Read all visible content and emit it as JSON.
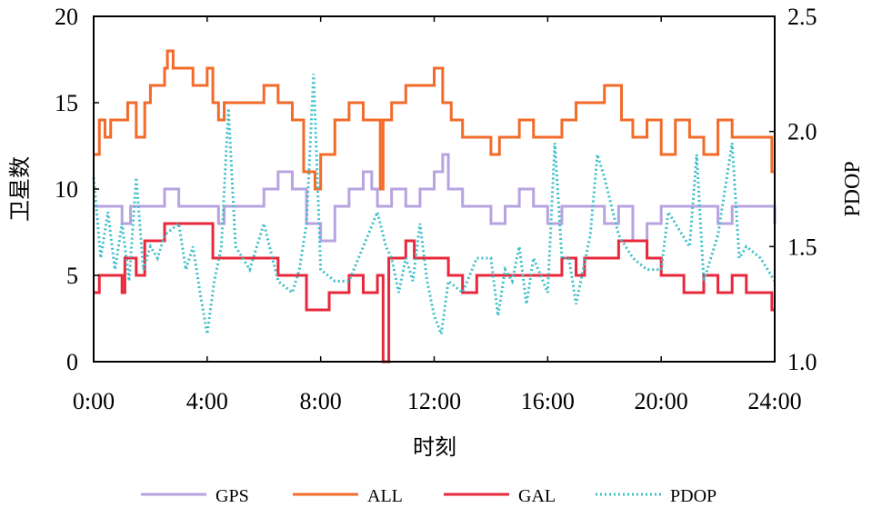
{
  "chart_data": {
    "type": "line",
    "xlabel": "时刻",
    "ylabel": "卫星数",
    "y2label": "PDOP",
    "xlim": [
      0,
      24
    ],
    "ylim": [
      0,
      20
    ],
    "y2lim": [
      1.0,
      2.5
    ],
    "grid": false,
    "legend_placement": "bottom",
    "x_ticks": [
      "0:00",
      "4:00",
      "8:00",
      "12:00",
      "16:00",
      "20:00",
      "24:00"
    ],
    "y_ticks": [
      "0",
      "5",
      "10",
      "15",
      "20"
    ],
    "y2_ticks": [
      "1.0",
      "1.5",
      "2.0",
      "2.5"
    ],
    "series": [
      {
        "name": "GPS",
        "axis": "left",
        "style": "step",
        "color": "#b7a3e0",
        "points": [
          [
            0,
            9
          ],
          [
            1,
            8
          ],
          [
            1.3,
            9
          ],
          [
            2,
            9
          ],
          [
            2.5,
            10
          ],
          [
            3,
            9
          ],
          [
            4,
            9
          ],
          [
            4.4,
            8
          ],
          [
            4.6,
            9
          ],
          [
            5,
            9
          ],
          [
            6,
            10
          ],
          [
            6.5,
            11
          ],
          [
            7,
            10
          ],
          [
            7.5,
            8
          ],
          [
            8,
            7
          ],
          [
            8.5,
            9
          ],
          [
            9,
            10
          ],
          [
            9.5,
            11
          ],
          [
            9.8,
            10
          ],
          [
            10,
            9
          ],
          [
            10.5,
            10
          ],
          [
            11,
            9
          ],
          [
            11.5,
            10
          ],
          [
            12,
            11
          ],
          [
            12.3,
            12
          ],
          [
            12.5,
            10
          ],
          [
            13,
            9
          ],
          [
            14,
            8
          ],
          [
            14.5,
            9
          ],
          [
            15,
            10
          ],
          [
            15.5,
            9
          ],
          [
            16,
            8
          ],
          [
            16.5,
            9
          ],
          [
            17.5,
            9
          ],
          [
            18,
            8
          ],
          [
            18.5,
            9
          ],
          [
            19,
            7
          ],
          [
            19.5,
            8
          ],
          [
            20,
            9
          ],
          [
            22,
            8
          ],
          [
            22.5,
            9
          ],
          [
            24,
            8
          ]
        ]
      },
      {
        "name": "ALL",
        "axis": "left",
        "style": "step",
        "color": "#f26b2a",
        "points": [
          [
            0,
            12
          ],
          [
            0.2,
            14
          ],
          [
            0.4,
            13
          ],
          [
            0.6,
            14
          ],
          [
            1.2,
            15
          ],
          [
            1.5,
            13
          ],
          [
            1.8,
            15
          ],
          [
            2,
            16
          ],
          [
            2.5,
            17
          ],
          [
            2.6,
            18
          ],
          [
            2.8,
            17
          ],
          [
            3.5,
            16
          ],
          [
            4,
            17
          ],
          [
            4.2,
            15
          ],
          [
            4.4,
            14
          ],
          [
            4.6,
            15
          ],
          [
            6,
            16
          ],
          [
            6.5,
            15
          ],
          [
            7,
            14
          ],
          [
            7.4,
            11
          ],
          [
            7.8,
            10
          ],
          [
            8,
            12
          ],
          [
            8.5,
            14
          ],
          [
            9,
            15
          ],
          [
            9.5,
            14
          ],
          [
            10.1,
            10
          ],
          [
            10.2,
            14
          ],
          [
            10.5,
            15
          ],
          [
            11,
            16
          ],
          [
            12,
            17
          ],
          [
            12.3,
            15
          ],
          [
            12.6,
            14
          ],
          [
            13,
            13
          ],
          [
            14,
            12
          ],
          [
            14.3,
            13
          ],
          [
            15,
            14
          ],
          [
            15.5,
            13
          ],
          [
            16.5,
            14
          ],
          [
            17,
            15
          ],
          [
            18,
            16
          ],
          [
            18.6,
            14
          ],
          [
            19,
            13
          ],
          [
            19.5,
            14
          ],
          [
            20,
            12
          ],
          [
            20.5,
            14
          ],
          [
            21,
            13
          ],
          [
            21.5,
            12
          ],
          [
            22,
            14
          ],
          [
            22.5,
            13
          ],
          [
            23,
            13
          ],
          [
            23.9,
            11
          ]
        ]
      },
      {
        "name": "GAL",
        "axis": "left",
        "style": "step",
        "color": "#e8283c",
        "points": [
          [
            0,
            4
          ],
          [
            0.2,
            5
          ],
          [
            1,
            4
          ],
          [
            1.1,
            6
          ],
          [
            1.5,
            5
          ],
          [
            1.8,
            7
          ],
          [
            2.5,
            8
          ],
          [
            4.2,
            6
          ],
          [
            6.5,
            5
          ],
          [
            7.5,
            3
          ],
          [
            8.3,
            4
          ],
          [
            9,
            5
          ],
          [
            9.5,
            4
          ],
          [
            10,
            5
          ],
          [
            10.2,
            0
          ],
          [
            10.4,
            6
          ],
          [
            11,
            7
          ],
          [
            11.3,
            6
          ],
          [
            12.5,
            5
          ],
          [
            13,
            4
          ],
          [
            13.5,
            5
          ],
          [
            16,
            5
          ],
          [
            16.5,
            6
          ],
          [
            17,
            5
          ],
          [
            17.3,
            6
          ],
          [
            18.5,
            7
          ],
          [
            19.5,
            6
          ],
          [
            20,
            5
          ],
          [
            20.8,
            4
          ],
          [
            21.5,
            5
          ],
          [
            22,
            4
          ],
          [
            22.5,
            5
          ],
          [
            23,
            4
          ],
          [
            23.9,
            3
          ]
        ]
      },
      {
        "name": "PDOP",
        "axis": "right",
        "style": "dotted",
        "color": "#3cbfc9",
        "points": [
          [
            0,
            1.8
          ],
          [
            0.25,
            1.45
          ],
          [
            0.5,
            1.65
          ],
          [
            0.75,
            1.4
          ],
          [
            1,
            1.6
          ],
          [
            1.25,
            1.35
          ],
          [
            1.5,
            1.8
          ],
          [
            1.75,
            1.4
          ],
          [
            2,
            1.5
          ],
          [
            2.25,
            1.45
          ],
          [
            2.5,
            1.55
          ],
          [
            3,
            1.6
          ],
          [
            3.25,
            1.4
          ],
          [
            3.5,
            1.5
          ],
          [
            3.75,
            1.3
          ],
          [
            4,
            1.12
          ],
          [
            4.25,
            1.35
          ],
          [
            4.5,
            1.5
          ],
          [
            4.75,
            2.1
          ],
          [
            5,
            1.5
          ],
          [
            5.5,
            1.4
          ],
          [
            6,
            1.6
          ],
          [
            6.5,
            1.35
          ],
          [
            7,
            1.3
          ],
          [
            7.25,
            1.4
          ],
          [
            7.5,
            1.6
          ],
          [
            7.75,
            2.25
          ],
          [
            8,
            1.4
          ],
          [
            8.5,
            1.35
          ],
          [
            9,
            1.35
          ],
          [
            9.5,
            1.5
          ],
          [
            10,
            1.65
          ],
          [
            10.3,
            1.5
          ],
          [
            10.5,
            1.45
          ],
          [
            10.75,
            1.3
          ],
          [
            11,
            1.45
          ],
          [
            11.25,
            1.35
          ],
          [
            11.5,
            1.6
          ],
          [
            11.75,
            1.35
          ],
          [
            12,
            1.2
          ],
          [
            12.25,
            1.12
          ],
          [
            12.5,
            1.35
          ],
          [
            13,
            1.3
          ],
          [
            13.5,
            1.45
          ],
          [
            14,
            1.45
          ],
          [
            14.25,
            1.2
          ],
          [
            14.5,
            1.4
          ],
          [
            14.75,
            1.35
          ],
          [
            15,
            1.5
          ],
          [
            15.25,
            1.25
          ],
          [
            15.5,
            1.45
          ],
          [
            16,
            1.3
          ],
          [
            16.25,
            1.95
          ],
          [
            16.5,
            1.45
          ],
          [
            16.75,
            1.45
          ],
          [
            17,
            1.25
          ],
          [
            17.25,
            1.4
          ],
          [
            17.5,
            1.55
          ],
          [
            17.75,
            1.9
          ],
          [
            18,
            1.8
          ],
          [
            18.5,
            1.55
          ],
          [
            19,
            1.45
          ],
          [
            19.5,
            1.4
          ],
          [
            20,
            1.4
          ],
          [
            20.25,
            1.65
          ],
          [
            20.5,
            1.6
          ],
          [
            21,
            1.5
          ],
          [
            21.25,
            1.9
          ],
          [
            21.5,
            1.35
          ],
          [
            22,
            1.55
          ],
          [
            22.5,
            1.95
          ],
          [
            22.75,
            1.45
          ],
          [
            23,
            1.5
          ],
          [
            23.5,
            1.45
          ],
          [
            24,
            1.35
          ]
        ]
      }
    ]
  }
}
